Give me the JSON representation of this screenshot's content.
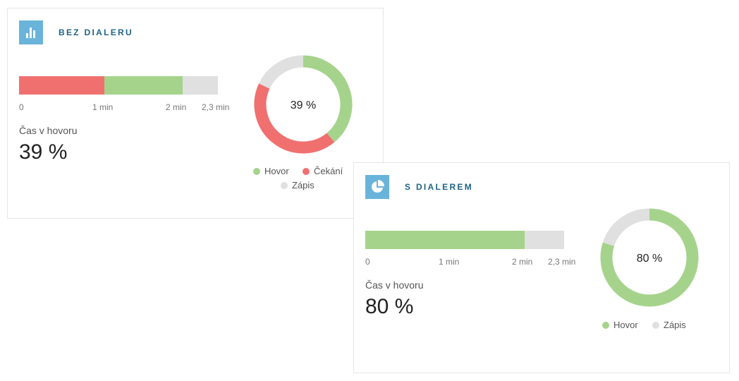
{
  "colors": {
    "hovor": "#a6d38c",
    "cekani": "#f07070",
    "zapis": "#e0e0e0",
    "icon_bg": "#6ab4db",
    "title": "#1e6487"
  },
  "chart_data": [
    {
      "type": "bar",
      "title": "BEZ DIALERU",
      "icon": "bar-chart-icon",
      "orientation": "horizontal-stacked",
      "segments": [
        {
          "name": "Čekání",
          "value": 0.99
        },
        {
          "name": "Hovor",
          "value": 0.9
        },
        {
          "name": "Zápis",
          "value": 0.41
        }
      ],
      "xlim": [
        0,
        2.3
      ],
      "ticks": [
        "0",
        "1 min",
        "2 min",
        "2,3 min"
      ],
      "metric_label": "Čas v hovoru",
      "metric_value": "39 %",
      "donut": {
        "type": "pie",
        "center_label": "39 %",
        "slices": [
          {
            "name": "Hovor",
            "value": 39
          },
          {
            "name": "Čekání",
            "value": 43
          },
          {
            "name": "Zápis",
            "value": 18
          }
        ]
      },
      "legend": [
        "Hovor",
        "Čekání",
        "Zápis"
      ]
    },
    {
      "type": "bar",
      "title": "S DIALEREM",
      "icon": "pie-chart-icon",
      "orientation": "horizontal-stacked",
      "segments": [
        {
          "name": "Hovor",
          "value": 1.84
        },
        {
          "name": "Zápis",
          "value": 0.46
        }
      ],
      "xlim": [
        0,
        2.3
      ],
      "ticks": [
        "0",
        "1 min",
        "2 min",
        "2,3 min"
      ],
      "metric_label": "Čas v hovoru",
      "metric_value": "80 %",
      "donut": {
        "type": "pie",
        "center_label": "80 %",
        "slices": [
          {
            "name": "Hovor",
            "value": 80
          },
          {
            "name": "Zápis",
            "value": 20
          }
        ]
      },
      "legend": [
        "Hovor",
        "Zápis"
      ]
    }
  ]
}
